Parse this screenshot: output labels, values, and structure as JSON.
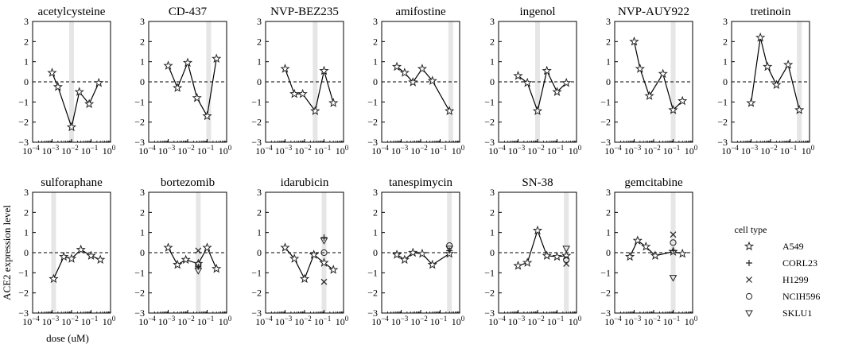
{
  "figure": {
    "ylabel": "ACE2 expression level",
    "xlabel": "dose (uM)"
  },
  "legend": {
    "title": "cell type",
    "items": [
      {
        "name": "A549",
        "marker": "star"
      },
      {
        "name": "CORL23",
        "marker": "plus"
      },
      {
        "name": "H1299",
        "marker": "cross"
      },
      {
        "name": "NCIH596",
        "marker": "circle"
      },
      {
        "name": "SKLU1",
        "marker": "triangle-down"
      }
    ]
  },
  "chart_data": [
    {
      "type": "line",
      "title": "acetylcysteine",
      "xscale": "log",
      "xlim_exp": [
        -4,
        0
      ],
      "ylim": [
        -3,
        3
      ],
      "xtick_exps": [
        -4,
        -3,
        -2,
        -1,
        0
      ],
      "yticks": [
        -3,
        -2,
        -1,
        0,
        1,
        2,
        3
      ],
      "highlight_x": 0.01,
      "show_yticks": true,
      "show_xticks": true,
      "series": [
        {
          "name": "A549",
          "marker": "star",
          "line": true,
          "x": [
            0.001,
            0.002,
            0.01,
            0.025,
            0.08,
            0.25
          ],
          "y": [
            0.45,
            -0.25,
            -2.25,
            -0.5,
            -1.1,
            -0.05
          ]
        }
      ]
    },
    {
      "type": "line",
      "title": "CD-437",
      "xscale": "log",
      "xlim_exp": [
        -4,
        0
      ],
      "ylim": [
        -3,
        3
      ],
      "xtick_exps": [
        -4,
        -3,
        -2,
        -1,
        0
      ],
      "yticks": [
        -3,
        -2,
        -1,
        0,
        1,
        2,
        3
      ],
      "highlight_x": 0.12,
      "show_yticks": true,
      "show_xticks": true,
      "series": [
        {
          "name": "A549",
          "marker": "star",
          "line": true,
          "x": [
            0.001,
            0.003,
            0.01,
            0.03,
            0.1,
            0.3
          ],
          "y": [
            0.8,
            -0.3,
            0.95,
            -0.8,
            -1.7,
            1.15
          ]
        }
      ]
    },
    {
      "type": "line",
      "title": "NVP-BEZ235",
      "xscale": "log",
      "xlim_exp": [
        -4,
        0
      ],
      "ylim": [
        -3,
        3
      ],
      "xtick_exps": [
        -4,
        -3,
        -2,
        -1,
        0
      ],
      "yticks": [
        -3,
        -2,
        -1,
        0,
        1,
        2,
        3
      ],
      "highlight_x": 0.035,
      "show_yticks": true,
      "show_xticks": true,
      "series": [
        {
          "name": "A549",
          "marker": "star",
          "line": true,
          "x": [
            0.001,
            0.003,
            0.008,
            0.035,
            0.1,
            0.3
          ],
          "y": [
            0.65,
            -0.6,
            -0.6,
            -1.45,
            0.55,
            -1.05
          ]
        }
      ]
    },
    {
      "type": "line",
      "title": "amifostine",
      "xscale": "log",
      "xlim_exp": [
        -4,
        0
      ],
      "ylim": [
        -3,
        3
      ],
      "xtick_exps": [
        -4,
        -3,
        -2,
        -1,
        0
      ],
      "yticks": [
        -3,
        -2,
        -1,
        0,
        1,
        2,
        3
      ],
      "highlight_x": 0.35,
      "show_yticks": true,
      "show_xticks": true,
      "series": [
        {
          "name": "A549",
          "marker": "star",
          "line": true,
          "x": [
            0.0006,
            0.0015,
            0.004,
            0.012,
            0.04,
            0.3
          ],
          "y": [
            0.75,
            0.45,
            -0.02,
            0.65,
            0.05,
            -1.45
          ]
        }
      ]
    },
    {
      "type": "line",
      "title": "ingenol",
      "xscale": "log",
      "xlim_exp": [
        -4,
        0
      ],
      "ylim": [
        -3,
        3
      ],
      "xtick_exps": [
        -4,
        -3,
        -2,
        -1,
        0
      ],
      "yticks": [
        -3,
        -2,
        -1,
        0,
        1,
        2,
        3
      ],
      "highlight_x": 0.01,
      "show_yticks": true,
      "show_xticks": true,
      "series": [
        {
          "name": "A549",
          "marker": "star",
          "line": true,
          "x": [
            0.001,
            0.003,
            0.01,
            0.03,
            0.1,
            0.3
          ],
          "y": [
            0.3,
            -0.05,
            -1.45,
            0.55,
            -0.5,
            -0.05
          ]
        }
      ]
    },
    {
      "type": "line",
      "title": "NVP-AUY922",
      "xscale": "log",
      "xlim_exp": [
        -4,
        0
      ],
      "ylim": [
        -3,
        3
      ],
      "xtick_exps": [
        -4,
        -3,
        -2,
        -1,
        0
      ],
      "yticks": [
        -3,
        -2,
        -1,
        0,
        1,
        2,
        3
      ],
      "highlight_x": 0.1,
      "show_yticks": true,
      "show_xticks": true,
      "series": [
        {
          "name": "A549",
          "marker": "star",
          "line": true,
          "x": [
            0.001,
            0.002,
            0.006,
            0.03,
            0.1,
            0.3
          ],
          "y": [
            2.0,
            0.65,
            -0.7,
            0.4,
            -1.4,
            -0.95
          ]
        }
      ]
    },
    {
      "type": "line",
      "title": "tretinoin",
      "xscale": "log",
      "xlim_exp": [
        -4,
        0
      ],
      "ylim": [
        -3,
        3
      ],
      "xtick_exps": [
        -4,
        -3,
        -2,
        -1,
        0
      ],
      "yticks": [
        -3,
        -2,
        -1,
        0,
        1,
        2,
        3
      ],
      "highlight_x": 0.3,
      "show_yticks": true,
      "show_xticks": true,
      "series": [
        {
          "name": "A549",
          "marker": "star",
          "line": true,
          "x": [
            0.001,
            0.003,
            0.007,
            0.02,
            0.08,
            0.3
          ],
          "y": [
            -1.05,
            2.2,
            0.75,
            -0.15,
            0.85,
            -1.4
          ]
        }
      ]
    },
    {
      "type": "line",
      "title": "sulforaphane",
      "xscale": "log",
      "xlim_exp": [
        -4,
        0
      ],
      "ylim": [
        -3,
        3
      ],
      "xtick_exps": [
        -4,
        -3,
        -2,
        -1,
        0
      ],
      "yticks": [
        -3,
        -2,
        -1,
        0,
        1,
        2,
        3
      ],
      "highlight_x": 0.0012,
      "show_yticks": true,
      "show_xticks": true,
      "series": [
        {
          "name": "A549",
          "marker": "star",
          "line": true,
          "x": [
            0.0012,
            0.004,
            0.01,
            0.03,
            0.1,
            0.3
          ],
          "y": [
            -1.3,
            -0.2,
            -0.3,
            0.15,
            -0.15,
            -0.35
          ]
        }
      ]
    },
    {
      "type": "line",
      "title": "bortezomib",
      "xscale": "log",
      "xlim_exp": [
        -4,
        0
      ],
      "ylim": [
        -3,
        3
      ],
      "xtick_exps": [
        -4,
        -3,
        -2,
        -1,
        0
      ],
      "yticks": [
        -3,
        -2,
        -1,
        0,
        1,
        2,
        3
      ],
      "highlight_x": 0.035,
      "show_yticks": true,
      "show_xticks": true,
      "series": [
        {
          "name": "A549",
          "marker": "star",
          "line": true,
          "x": [
            0.001,
            0.003,
            0.008,
            0.035,
            0.1,
            0.3
          ],
          "y": [
            0.25,
            -0.6,
            -0.35,
            -0.55,
            0.25,
            -0.8
          ]
        },
        {
          "name": "CORL23",
          "marker": "plus",
          "line": false,
          "x": [
            0.035
          ],
          "y": [
            -0.7
          ]
        },
        {
          "name": "H1299",
          "marker": "cross",
          "line": false,
          "x": [
            0.035
          ],
          "y": [
            0.1
          ]
        },
        {
          "name": "NCIH596",
          "marker": "circle",
          "line": false,
          "x": [
            0.035
          ],
          "y": [
            -0.6
          ]
        },
        {
          "name": "SKLU1",
          "marker": "triangle-down",
          "line": false,
          "x": [
            0.035
          ],
          "y": [
            -0.9
          ]
        }
      ]
    },
    {
      "type": "line",
      "title": "idarubicin",
      "xscale": "log",
      "xlim_exp": [
        -4,
        0
      ],
      "ylim": [
        -3,
        3
      ],
      "xtick_exps": [
        -4,
        -3,
        -2,
        -1,
        0
      ],
      "yticks": [
        -3,
        -2,
        -1,
        0,
        1,
        2,
        3
      ],
      "highlight_x": 0.1,
      "show_yticks": true,
      "show_xticks": true,
      "series": [
        {
          "name": "A549",
          "marker": "star",
          "line": true,
          "x": [
            0.001,
            0.003,
            0.01,
            0.03,
            0.1,
            0.3
          ],
          "y": [
            0.25,
            -0.3,
            -1.3,
            -0.1,
            -0.5,
            -0.85
          ]
        },
        {
          "name": "CORL23",
          "marker": "plus",
          "line": false,
          "x": [
            0.1
          ],
          "y": [
            0.75
          ]
        },
        {
          "name": "H1299",
          "marker": "cross",
          "line": false,
          "x": [
            0.1
          ],
          "y": [
            -1.45
          ]
        },
        {
          "name": "NCIH596",
          "marker": "circle",
          "line": false,
          "x": [
            0.1
          ],
          "y": [
            0.0
          ]
        },
        {
          "name": "SKLU1",
          "marker": "triangle-down",
          "line": false,
          "x": [
            0.1
          ],
          "y": [
            0.6
          ]
        }
      ]
    },
    {
      "type": "line",
      "title": "tanespimycin",
      "xscale": "log",
      "xlim_exp": [
        -4,
        0
      ],
      "ylim": [
        -3,
        3
      ],
      "xtick_exps": [
        -4,
        -3,
        -2,
        -1,
        0
      ],
      "yticks": [
        -3,
        -2,
        -1,
        0,
        1,
        2,
        3
      ],
      "highlight_x": 0.3,
      "show_yticks": true,
      "show_xticks": true,
      "series": [
        {
          "name": "A549",
          "marker": "star",
          "line": true,
          "x": [
            0.0006,
            0.0015,
            0.004,
            0.012,
            0.04,
            0.3
          ],
          "y": [
            -0.1,
            -0.35,
            0.0,
            -0.05,
            -0.6,
            -0.05
          ]
        },
        {
          "name": "CORL23",
          "marker": "plus",
          "line": false,
          "x": [
            0.3
          ],
          "y": [
            0.1
          ]
        },
        {
          "name": "NCIH596",
          "marker": "circle",
          "line": false,
          "x": [
            0.3
          ],
          "y": [
            0.35
          ]
        },
        {
          "name": "SKLU1",
          "marker": "triangle-down",
          "line": false,
          "x": [
            0.3
          ],
          "y": [
            0.2
          ]
        }
      ]
    },
    {
      "type": "line",
      "title": "SN-38",
      "xscale": "log",
      "xlim_exp": [
        -4,
        0
      ],
      "ylim": [
        -3,
        3
      ],
      "xtick_exps": [
        -4,
        -3,
        -2,
        -1,
        0
      ],
      "yticks": [
        -3,
        -2,
        -1,
        0,
        1,
        2,
        3
      ],
      "highlight_x": 0.3,
      "show_yticks": true,
      "show_xticks": true,
      "series": [
        {
          "name": "A549",
          "marker": "star",
          "line": true,
          "x": [
            0.001,
            0.003,
            0.01,
            0.03,
            0.1,
            0.3
          ],
          "y": [
            -0.65,
            -0.5,
            1.1,
            -0.15,
            -0.2,
            -0.15
          ]
        },
        {
          "name": "H1299",
          "marker": "cross",
          "line": false,
          "x": [
            0.3
          ],
          "y": [
            -0.55
          ]
        },
        {
          "name": "NCIH596",
          "marker": "circle",
          "line": false,
          "x": [
            0.3
          ],
          "y": [
            -0.35
          ]
        },
        {
          "name": "SKLU1",
          "marker": "triangle-down",
          "line": false,
          "x": [
            0.3
          ],
          "y": [
            0.2
          ]
        }
      ]
    },
    {
      "type": "line",
      "title": "gemcitabine",
      "xscale": "log",
      "xlim_exp": [
        -4,
        0
      ],
      "ylim": [
        -3,
        3
      ],
      "xtick_exps": [
        -4,
        -3,
        -2,
        -1,
        0
      ],
      "yticks": [
        -3,
        -2,
        -1,
        0,
        1,
        2,
        3
      ],
      "highlight_x": 0.1,
      "show_yticks": true,
      "show_xticks": true,
      "series": [
        {
          "name": "A549",
          "marker": "star",
          "line": true,
          "x": [
            0.0006,
            0.0015,
            0.004,
            0.012,
            0.1,
            0.3
          ],
          "y": [
            -0.2,
            0.6,
            0.3,
            -0.15,
            0.05,
            -0.05
          ]
        },
        {
          "name": "CORL23",
          "marker": "plus",
          "line": false,
          "x": [
            0.1
          ],
          "y": [
            0.1
          ]
        },
        {
          "name": "H1299",
          "marker": "cross",
          "line": false,
          "x": [
            0.1
          ],
          "y": [
            0.9
          ]
        },
        {
          "name": "NCIH596",
          "marker": "circle",
          "line": false,
          "x": [
            0.1
          ],
          "y": [
            0.5
          ]
        },
        {
          "name": "SKLU1",
          "marker": "triangle-down",
          "line": false,
          "x": [
            0.1
          ],
          "y": [
            -1.25
          ]
        }
      ]
    }
  ]
}
